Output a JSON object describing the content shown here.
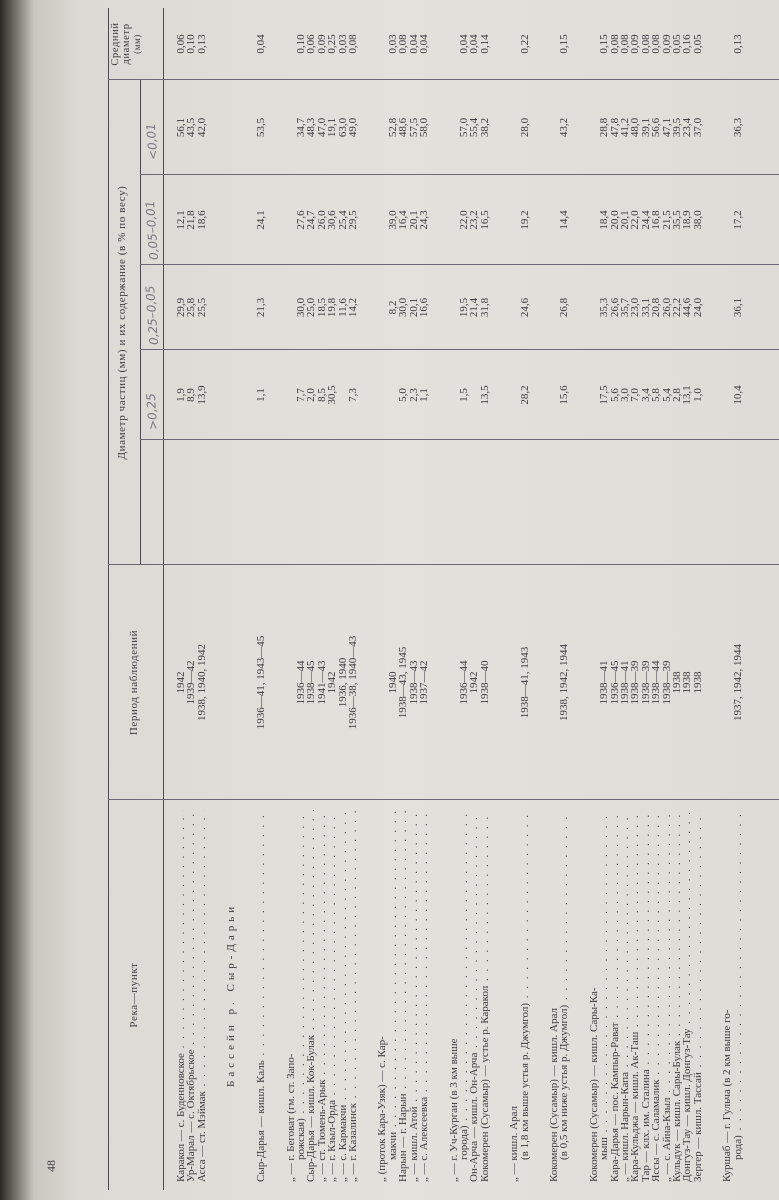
{
  "page_number": "48",
  "headers": {
    "river": "Река—пункт",
    "period": "Период наблюдений",
    "diameter": "Диаметр частиц (мм) и их содержание (в % по весу)",
    "mean_line1": "Средний",
    "mean_line2": "диаметр",
    "mean_line3": "(мм)",
    "handwritten_fractions": [
      ">0,25",
      "0,25–0,05",
      "0,05–0,01",
      "<0,01"
    ]
  },
  "groups": [
    {
      "rows": [
        {
          "name": [
            "Каракол — с. Буденновское"
          ],
          "period": "1942",
          "f1": "1,9",
          "f2": "29,9",
          "f3": "12,1",
          "f4": "56,1",
          "mean": "0,06"
        },
        {
          "name": [
            "Ур-Марал — с. Октябрьское"
          ],
          "period": "1939—42",
          "f1": "8,9",
          "f2": "25,8",
          "f3": "21,8",
          "f4": "43,5",
          "mean": "0,10"
        },
        {
          "name": [
            "Асса — ст. Мэймак"
          ],
          "period": "1938, 1940, 1942",
          "f1": "13,9",
          "f2": "25,5",
          "f3": "18,6",
          "f4": "42,0",
          "mean": "0,13"
        }
      ]
    },
    {
      "heading": "Бассейн р. Сыр-Дарьи",
      "rows": []
    },
    {
      "rows": [
        {
          "name": [
            "Сыр-Дарья — кишл. Каль"
          ],
          "period": "1936—41, 1943—45",
          "f1": "1,1",
          "f2": "21,3",
          "f3": "24,1",
          "f4": "53,5",
          "mean": "0,04"
        }
      ]
    },
    {
      "rows": [
        {
          "name": [
            "„ — г. Беговат (гм. ст. Запо-",
            "рожская)"
          ],
          "period": "1936—44",
          "f1": "7,7",
          "f2": "30,0",
          "f3": "27,6",
          "f4": "34,7",
          "mean": "0,10"
        },
        {
          "name": [
            "Сыр-Дарья — кишл. Кок-Булак"
          ],
          "period": "1938—45",
          "f1": "2,0",
          "f2": "25,0",
          "f3": "24,7",
          "f4": "48,3",
          "mean": "0,06"
        },
        {
          "name": [
            "„ — ст. Тюмень-Арык"
          ],
          "period": "1941—43",
          "f1": "8,5",
          "f2": "18,5",
          "f3": "26,0",
          "f4": "47,0",
          "mean": "0,09"
        },
        {
          "name": [
            "„ — г. Кзыл-Орда"
          ],
          "period": "1942",
          "f1": "30,5",
          "f2": "19,8",
          "f3": "30,6",
          "f4": "19,1",
          "mean": "0,25"
        },
        {
          "name": [
            "„ — с. Кармакчи"
          ],
          "period": "1936, 1940",
          "f1": "",
          "f2": "11,6",
          "f3": "25,4",
          "f4": "63,0",
          "mean": "0,03"
        },
        {
          "name": [
            "„ — г. Казалинск"
          ],
          "period": "1936—38, 1940—43",
          "f1": "7,3",
          "f2": "14,2",
          "f3": "29,5",
          "f4": "49,0",
          "mean": "0,08"
        }
      ]
    },
    {
      "rows": [
        {
          "name": [
            "„ (проток Кара-Узяк) — с. Кар-",
            "макчи"
          ],
          "period": "1940",
          "f1": "",
          "f2": "8,2",
          "f3": "39,0",
          "f4": "52,8",
          "mean": "0,03"
        },
        {
          "name": [
            "Нарын — г. Нарын"
          ],
          "period": "1938—43, 1945",
          "f1": "5,0",
          "f2": "30,0",
          "f3": "16,4",
          "f4": "48,6",
          "mean": "0,08"
        },
        {
          "name": [
            "„ — кишл. Атой"
          ],
          "period": "1938—43",
          "f1": "2,3",
          "f2": "20,1",
          "f3": "20,1",
          "f4": "57,5",
          "mean": "0,04"
        },
        {
          "name": [
            "„ — с. Алексеевка"
          ],
          "period": "1937—42",
          "f1": "1,1",
          "f2": "16,6",
          "f3": "24,3",
          "f4": "58,0",
          "mean": "0,04"
        }
      ]
    },
    {
      "rows": [
        {
          "name": [
            "„ — г. Уч-Курган (в 3 км выше",
            "города)"
          ],
          "period": "1936—44",
          "f1": "1,5",
          "f2": "19,5",
          "f3": "22,0",
          "f4": "57,0",
          "mean": "0,04"
        },
        {
          "name": [
            "Он-Арча — кишл. Он-Арча"
          ],
          "period": "1942",
          "f1": "",
          "f2": "21,4",
          "f3": "23,2",
          "f4": "55,4",
          "mean": "0,04"
        },
        {
          "name": [
            "Кокомерен (Сусамыр) — устье р. Каракол"
          ],
          "period": "1938—40",
          "f1": "13,5",
          "f2": "31,8",
          "f3": "16,5",
          "f4": "38,2",
          "mean": "0,14"
        }
      ]
    },
    {
      "rows": [
        {
          "name": [
            "„ — кишл. Арал",
            "(в 1,8 км выше устья р. Джумгол)"
          ],
          "period": "1938—41, 1943",
          "f1": "28,2",
          "f2": "24,6",
          "f3": "19,2",
          "f4": "28,0",
          "mean": "0,22"
        }
      ]
    },
    {
      "rows": [
        {
          "name": [
            "Кокомерен (Сусамыр) — кишл. Арал",
            "(в 0,5 км ниже устья р. Джумгол)"
          ],
          "period": "1938, 1942, 1944",
          "f1": "15,6",
          "f2": "26,8",
          "f3": "14,4",
          "f4": "43,2",
          "mean": "0,15"
        }
      ]
    },
    {
      "rows": [
        {
          "name": [
            "Кокомерен (Сусамыр) — кишл. Сары-Ка-",
            "мыш"
          ],
          "period": "1938—41",
          "f1": "17,5",
          "f2": "35,3",
          "f3": "18,4",
          "f4": "28,8",
          "mean": "0,15"
        },
        {
          "name": [
            "Кара-Дарья — пос. Кампыр-Рават"
          ],
          "period": "1936—45",
          "f1": "5,6",
          "f2": "26,6",
          "f3": "20,0",
          "f4": "47,8",
          "mean": "0,08"
        },
        {
          "name": [
            "„ — кишл. Нарын-Капа"
          ],
          "period": "1938—41",
          "f1": "3,0",
          "f2": "35,7",
          "f3": "20,1",
          "f4": "41,2",
          "mean": "0,08"
        },
        {
          "name": [
            "Кара-Кульджа — кишл. Ак-Таш"
          ],
          "period": "1938—39",
          "f1": "7,0",
          "f2": "23,0",
          "f3": "22,0",
          "f4": "48,0",
          "mean": "0,09"
        },
        {
          "name": [
            "Тар — клх. им. Сталина"
          ],
          "period": "1938—39",
          "f1": "3,4",
          "f2": "33,1",
          "f3": "24,4",
          "f4": "39,1",
          "mean": "0,08"
        },
        {
          "name": [
            "Яссы — с. Саламалик"
          ],
          "period": "1938—44",
          "f1": "5,8",
          "f2": "20,8",
          "f3": "16,8",
          "f4": "56,6",
          "mean": "0,08"
        },
        {
          "name": [
            "„ — с. Айна-Кзыл"
          ],
          "period": "1938—39",
          "f1": "5,4",
          "f2": "26,0",
          "f3": "21,5",
          "f4": "47,1",
          "mean": "0,09"
        },
        {
          "name": [
            "Кульдук — кишл. Сары-Булак"
          ],
          "period": "1938",
          "f1": "2,8",
          "f2": "22,2",
          "f3": "35,5",
          "f4": "39,5",
          "mean": "0,05"
        },
        {
          "name": [
            "Донгуз-Тау — кишл. Донгуз-Тау"
          ],
          "period": "1938",
          "f1": "13,1",
          "f2": "44,6",
          "f3": "18,9",
          "f4": "23,4",
          "mean": "0,16"
        },
        {
          "name": [
            "Зергер — кишл. Тассай"
          ],
          "period": "1938",
          "f1": "1,0",
          "f2": "24,0",
          "f3": "38,0",
          "f4": "37,0",
          "mean": "0,05"
        }
      ]
    },
    {
      "rows": [
        {
          "name": [
            "Куршаб — г. Гульча (в 2 км выше го-",
            "рода)"
          ],
          "period": "1937, 1942, 1944",
          "f1": "10,4",
          "f2": "36,1",
          "f3": "17,2",
          "f4": "36,3",
          "mean": "0,13"
        }
      ]
    }
  ]
}
